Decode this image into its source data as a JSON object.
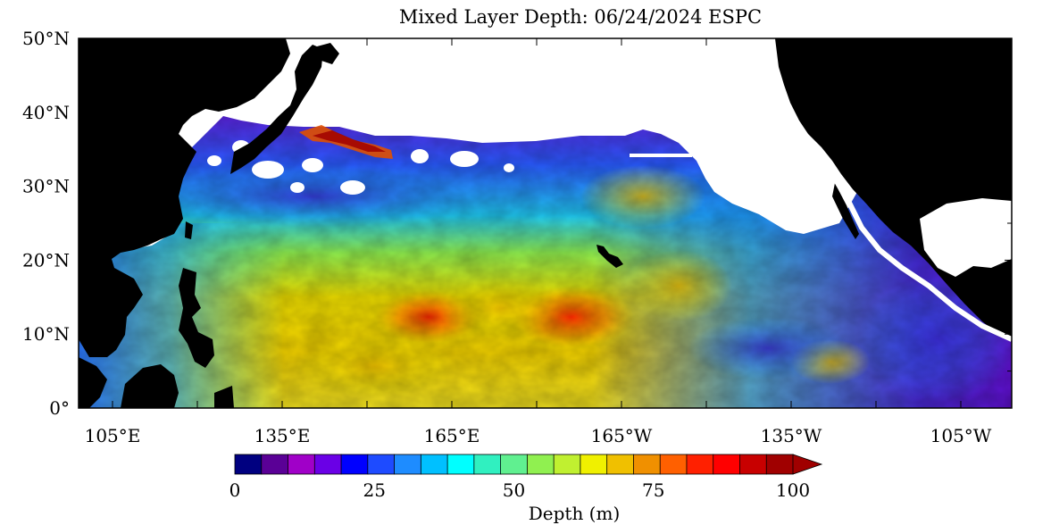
{
  "title": "Mixed Layer Depth: 06/24/2024 ESPC",
  "map": {
    "lat_labels": [
      "50°N",
      "40°N",
      "30°N",
      "20°N",
      "10°N",
      "0°"
    ],
    "lon_labels": [
      "105°E",
      "135°E",
      "165°E",
      "165°W",
      "135°W",
      "105°W"
    ],
    "extent": {
      "lon_min_east": 99,
      "lon_max_east": 264,
      "lat_min": 0,
      "lat_max": 50
    },
    "land_color": "#000000",
    "missing_color": "#ffffff"
  },
  "colorbar": {
    "label": "Depth (m)",
    "tick_labels": [
      "0",
      "25",
      "50",
      "75",
      "100"
    ],
    "min": 0,
    "max": 100,
    "step": 5,
    "extend": "max",
    "colors": [
      "#000080",
      "#5a0096",
      "#a000c8",
      "#6a00e6",
      "#0000ff",
      "#1e4bff",
      "#1e8cff",
      "#00c0ff",
      "#00ffff",
      "#30f0c0",
      "#60f090",
      "#90f050",
      "#c0f030",
      "#f0f000",
      "#f0c000",
      "#f09000",
      "#ff6000",
      "#ff2000",
      "#ff0000",
      "#c80000",
      "#a00000"
    ]
  }
}
